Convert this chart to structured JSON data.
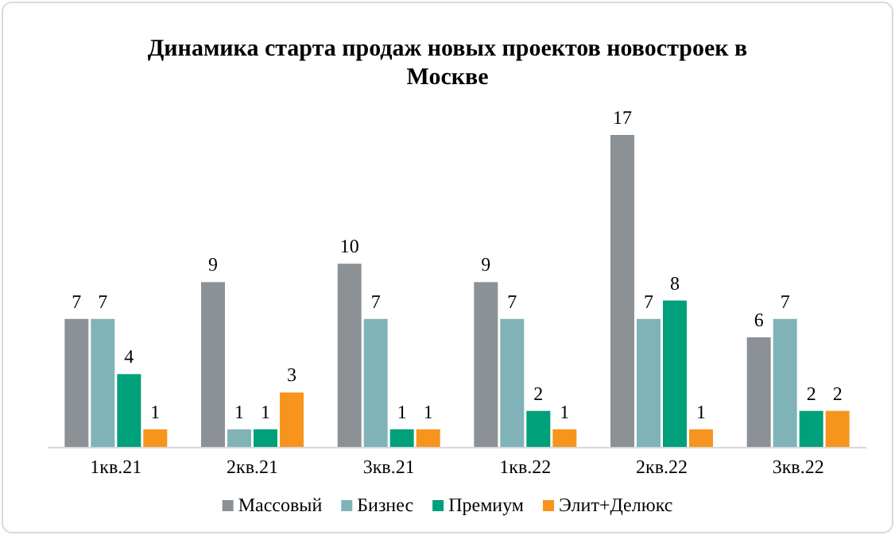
{
  "chart_data": {
    "type": "bar",
    "title": "Динамика старта продаж новых проектов новостроек в Москве",
    "categories": [
      "1кв.21",
      "2кв.21",
      "3кв.21",
      "1кв.22",
      "2кв.22",
      "3кв.22"
    ],
    "series": [
      {
        "name": "Массовый",
        "color": "#8c9196",
        "values": [
          7,
          9,
          10,
          9,
          17,
          6
        ]
      },
      {
        "name": "Бизнес",
        "color": "#80b3b8",
        "values": [
          7,
          1,
          7,
          7,
          7,
          7
        ]
      },
      {
        "name": "Премиум",
        "color": "#00a07a",
        "values": [
          4,
          1,
          1,
          2,
          8,
          2
        ]
      },
      {
        "name": "Элит+Делюкс",
        "color": "#f7941d",
        "values": [
          1,
          3,
          1,
          1,
          1,
          2
        ]
      }
    ],
    "data_labels": true,
    "legend": "bottom"
  }
}
